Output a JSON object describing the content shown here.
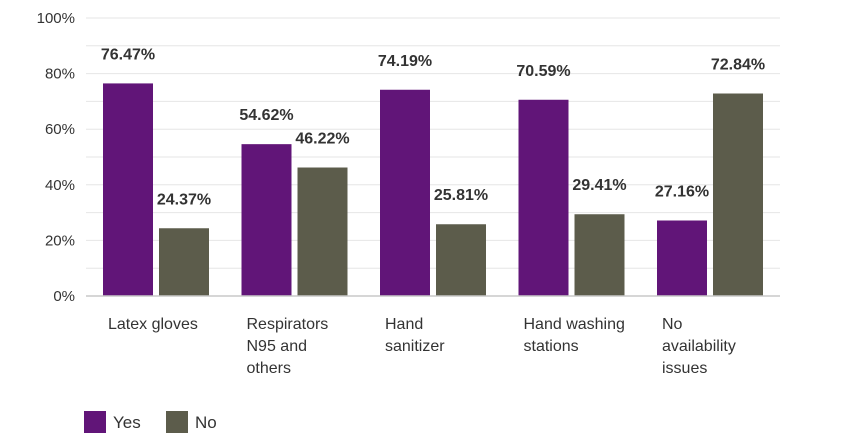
{
  "chart_data": {
    "type": "bar",
    "categories": [
      [
        "Latex gloves"
      ],
      [
        "Respirators",
        "N95 and",
        "others"
      ],
      [
        "Hand",
        "sanitizer"
      ],
      [
        "Hand washing",
        "stations"
      ],
      [
        "No",
        "availability",
        "issues"
      ]
    ],
    "series": [
      {
        "name": "Yes",
        "color": "#611578",
        "values": [
          76.47,
          54.62,
          74.19,
          70.59,
          27.16
        ],
        "labels": [
          "76.47%",
          "54.62%",
          "74.19%",
          "70.59%",
          "27.16%"
        ]
      },
      {
        "name": "No",
        "color": "#5c5c4b",
        "values": [
          24.37,
          46.22,
          25.81,
          29.41,
          72.84
        ],
        "labels": [
          "24.37%",
          "46.22%",
          "25.81%",
          "29.41%",
          "72.84%"
        ]
      }
    ],
    "yticks": [
      "0%",
      "20%",
      "40%",
      "60%",
      "80%",
      "100%"
    ],
    "ylim": [
      0,
      100
    ],
    "grid": true,
    "legend_position": "bottom-left"
  }
}
